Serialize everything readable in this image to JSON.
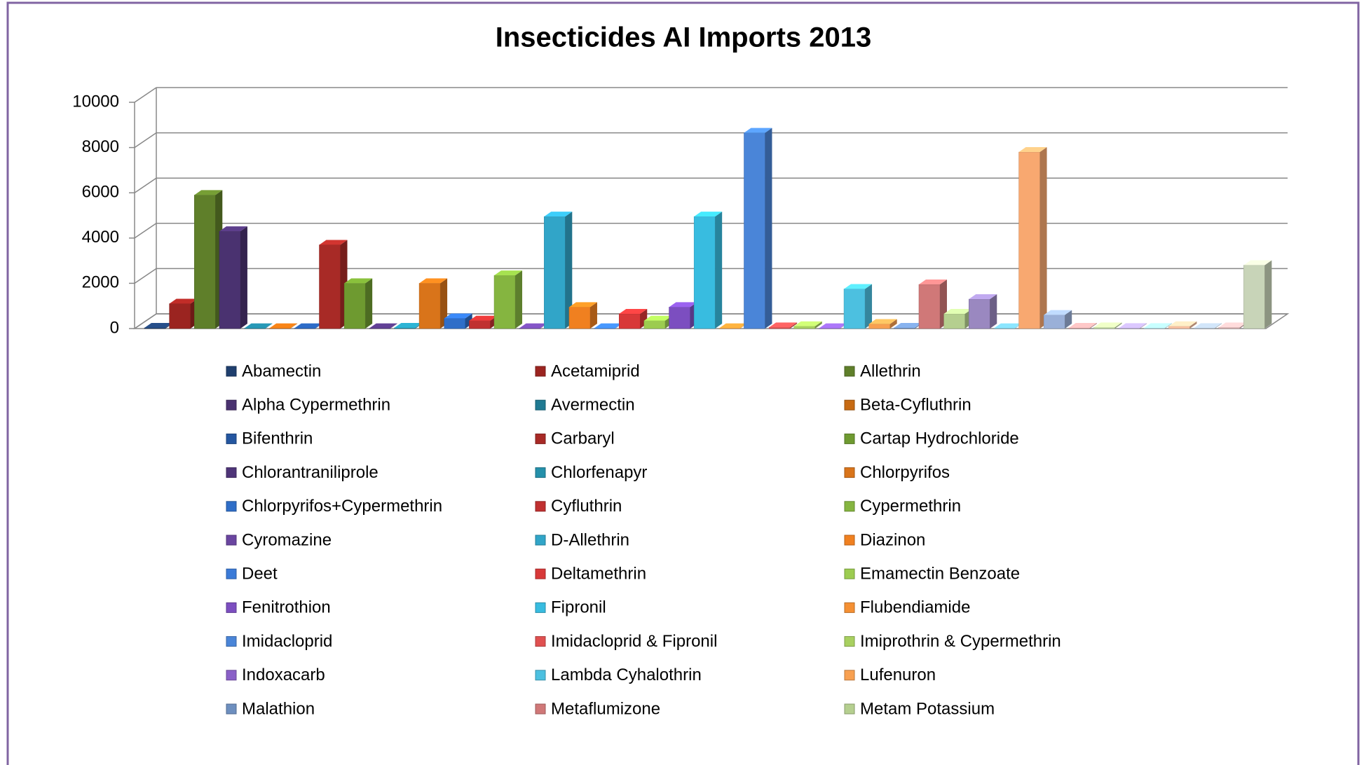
{
  "chart_data": {
    "type": "bar3d",
    "title": "Insecticides AI Imports 2013",
    "ylim": [
      0,
      10000
    ],
    "yticks": [
      0,
      2000,
      4000,
      6000,
      8000,
      10000
    ],
    "grid": true,
    "legend": "bottom",
    "series": [
      {
        "name": "Abamectin",
        "color": "#1f3f6e",
        "values": [
          30
        ]
      },
      {
        "name": "Acetamiprid",
        "color": "#9b2420",
        "values": [
          1100
        ]
      },
      {
        "name": "Allethrin",
        "color": "#5f7f2a",
        "values": [
          5900
        ]
      },
      {
        "name": "Alpha Cypermethrin",
        "color": "#4a3270",
        "values": [
          4300
        ]
      },
      {
        "name": "Avermectin",
        "color": "#1f7a92",
        "values": [
          10
        ]
      },
      {
        "name": "Beta-Cyfluthrin",
        "color": "#c76a12",
        "values": [
          10
        ]
      },
      {
        "name": "Bifenthrin",
        "color": "#2456a0",
        "values": [
          10
        ]
      },
      {
        "name": "Carbaryl",
        "color": "#a82a26",
        "values": [
          3700
        ]
      },
      {
        "name": "Cartap Hydrochloride",
        "color": "#6e9a30",
        "values": [
          2000
        ]
      },
      {
        "name": "Chlorantraniliprole",
        "color": "#4e3478",
        "values": [
          10
        ]
      },
      {
        "name": "Chlorfenapyr",
        "color": "#2490aa",
        "values": [
          30
        ]
      },
      {
        "name": "Chlorpyrifos",
        "color": "#d9741a",
        "values": [
          2000
        ]
      },
      {
        "name": "Chlorpyrifos+Cypermethrin",
        "color": "#2f6ec8",
        "values": [
          450
        ]
      },
      {
        "name": "Cyfluthrin",
        "color": "#c03030",
        "values": [
          350
        ]
      },
      {
        "name": "Cypermethrin",
        "color": "#85b540",
        "values": [
          2350
        ]
      },
      {
        "name": "Cyromazine",
        "color": "#6a45a0",
        "values": [
          10
        ]
      },
      {
        "name": "D-Allethrin",
        "color": "#31a5c8",
        "values": [
          4950
        ]
      },
      {
        "name": "Diazinon",
        "color": "#f08020",
        "values": [
          950
        ]
      },
      {
        "name": "Deet",
        "color": "#3a7ad8",
        "values": [
          10
        ]
      },
      {
        "name": "Deltamethrin",
        "color": "#d83838",
        "values": [
          650
        ]
      },
      {
        "name": "Emamectin Benzoate",
        "color": "#9ccc50",
        "values": [
          350
        ]
      },
      {
        "name": "Fenitrothion",
        "color": "#7c4ec0",
        "values": [
          950
        ]
      },
      {
        "name": "Fipronil",
        "color": "#38bce0",
        "values": [
          4950
        ]
      },
      {
        "name": "Flubendiamide",
        "color": "#f59033",
        "values": [
          10
        ]
      },
      {
        "name": "Imidacloprid",
        "color": "#4a85d8",
        "values": [
          8650
        ]
      },
      {
        "name": "Imidacloprid & Fipronil",
        "color": "#e05050",
        "values": [
          50
        ]
      },
      {
        "name": "Imiprothrin & Cypermethrin",
        "color": "#a8d060",
        "values": [
          100
        ]
      },
      {
        "name": "Indoxacarb",
        "color": "#8a60c8",
        "values": [
          10
        ]
      },
      {
        "name": "Lambda Cyhalothrin",
        "color": "#4cc0e0",
        "values": [
          1750
        ]
      },
      {
        "name": "Lufenuron",
        "color": "#f8a050",
        "values": [
          200
        ]
      },
      {
        "name": "Malathion",
        "color": "#6d8fbf",
        "values": [
          30
        ]
      },
      {
        "name": "Metaflumizone",
        "color": "#d07878",
        "values": [
          1950
        ]
      },
      {
        "name": "Metam Potassium",
        "color": "#b5cf8f",
        "values": [
          650
        ]
      },
      {
        "name": null,
        "color": "#9a88c0",
        "values": [
          1300
        ]
      },
      {
        "name": null,
        "color": "#70b8cc",
        "values": [
          10
        ]
      },
      {
        "name": null,
        "color": "#f8a870",
        "values": [
          7800
        ]
      },
      {
        "name": null,
        "color": "#9ab0d8",
        "values": [
          600
        ]
      },
      {
        "name": null,
        "color": "#d8a0a0",
        "values": [
          30
        ]
      },
      {
        "name": null,
        "color": "#c0d8a0",
        "values": [
          50
        ]
      },
      {
        "name": null,
        "color": "#b0a0d0",
        "values": [
          20
        ]
      },
      {
        "name": null,
        "color": "#a0d0e0",
        "values": [
          20
        ]
      },
      {
        "name": null,
        "color": "#f8c0a0",
        "values": [
          100
        ]
      },
      {
        "name": null,
        "color": "#a8b8c8",
        "values": [
          20
        ]
      },
      {
        "name": null,
        "color": "#d8b0b0",
        "values": [
          50
        ]
      },
      {
        "name": null,
        "color": "#c8d4b8",
        "values": [
          2800
        ]
      }
    ]
  }
}
